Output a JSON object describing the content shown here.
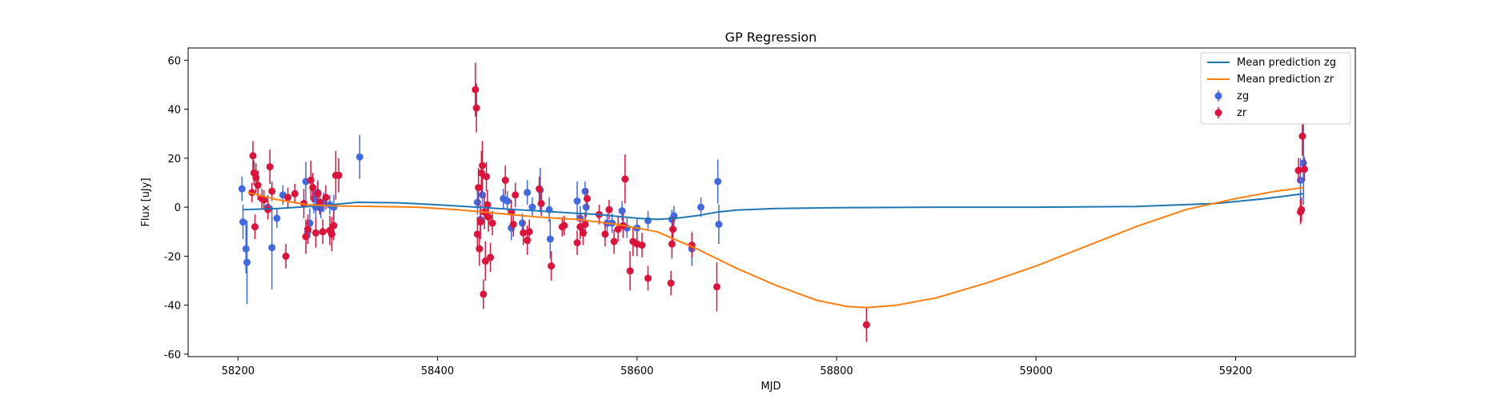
{
  "chart_data": {
    "type": "scatter",
    "title": "GP Regression",
    "xlabel": "MJD",
    "ylabel": "Flux [uJy]",
    "xlim": [
      58150,
      59320
    ],
    "ylim": [
      -61,
      65
    ],
    "xticks": [
      58200,
      58400,
      58600,
      58800,
      59000,
      59200
    ],
    "yticks": [
      -60,
      -40,
      -20,
      0,
      20,
      40,
      60
    ],
    "grid": false,
    "legend_position": "top-right",
    "legend": [
      "Mean prediction zg",
      "Mean prediction zr",
      "zg",
      "zr"
    ],
    "colors": {
      "zg_line": "#1f77b4",
      "zr_line": "#ff7f0e",
      "zg_points": "#4169e1",
      "zr_points": "#dc143c"
    },
    "lines": [
      {
        "name": "Mean prediction zg",
        "x": [
          58205,
          58240,
          58280,
          58320,
          58360,
          58400,
          58440,
          58480,
          58520,
          58560,
          58600,
          58620,
          58640,
          58660,
          58680,
          58700,
          58740,
          58800,
          58900,
          59000,
          59100,
          59180,
          59230,
          59268
        ],
        "y": [
          -1,
          -0.5,
          0.5,
          2,
          1.8,
          1,
          0,
          -1,
          -2,
          -3,
          -4.5,
          -5,
          -4.5,
          -3.5,
          -2,
          -1.2,
          -0.5,
          -0.2,
          0,
          0,
          0.3,
          1.5,
          3.5,
          5.5
        ]
      },
      {
        "name": "Mean prediction zr",
        "x": [
          58210,
          58240,
          58270,
          58300,
          58340,
          58380,
          58420,
          58460,
          58500,
          58540,
          58580,
          58620,
          58660,
          58700,
          58740,
          58780,
          58810,
          58830,
          58860,
          58900,
          58950,
          59000,
          59050,
          59100,
          59150,
          59200,
          59240,
          59268
        ],
        "y": [
          6,
          3,
          1,
          0.5,
          0.3,
          0,
          -1,
          -2.5,
          -4,
          -5,
          -7,
          -10,
          -17,
          -25,
          -32,
          -38,
          -40.5,
          -41,
          -40,
          -37,
          -31,
          -24,
          -16,
          -8,
          -1,
          3.5,
          6.5,
          8
        ]
      }
    ],
    "series": [
      {
        "name": "zg",
        "points": [
          {
            "x": 58204,
            "y": 7.5,
            "err": 5
          },
          {
            "x": 58205,
            "y": -6,
            "err": 7
          },
          {
            "x": 58208,
            "y": -17,
            "err": 10
          },
          {
            "x": 58209,
            "y": -22.5,
            "err": 17
          },
          {
            "x": 58230,
            "y": 0,
            "err": 5
          },
          {
            "x": 58234,
            "y": -16.5,
            "err": 17
          },
          {
            "x": 58239,
            "y": -4.5,
            "err": 4
          },
          {
            "x": 58245,
            "y": 5,
            "err": 4
          },
          {
            "x": 58268,
            "y": 10.5,
            "err": 8
          },
          {
            "x": 58270,
            "y": -10,
            "err": 5
          },
          {
            "x": 58272,
            "y": -6.5,
            "err": 6
          },
          {
            "x": 58276,
            "y": 3.5,
            "err": 6
          },
          {
            "x": 58278,
            "y": 0,
            "err": 5
          },
          {
            "x": 58280,
            "y": 6,
            "err": 5
          },
          {
            "x": 58283,
            "y": -0.5,
            "err": 4
          },
          {
            "x": 58286,
            "y": 2,
            "err": 4
          },
          {
            "x": 58292,
            "y": 1,
            "err": 4
          },
          {
            "x": 58296,
            "y": 0,
            "err": 5
          },
          {
            "x": 58322,
            "y": 20.5,
            "err": 9
          },
          {
            "x": 58440,
            "y": 2,
            "err": 5
          },
          {
            "x": 58443,
            "y": -5,
            "err": 5
          },
          {
            "x": 58445,
            "y": 5,
            "err": 5
          },
          {
            "x": 58466,
            "y": 3.5,
            "err": 4
          },
          {
            "x": 58470,
            "y": 2.5,
            "err": 4
          },
          {
            "x": 58474,
            "y": -8.5,
            "err": 5
          },
          {
            "x": 58485,
            "y": -6.5,
            "err": 4
          },
          {
            "x": 58490,
            "y": 6,
            "err": 5
          },
          {
            "x": 58495,
            "y": 0,
            "err": 4
          },
          {
            "x": 58503,
            "y": 7,
            "err": 9
          },
          {
            "x": 58512,
            "y": -1,
            "err": 5
          },
          {
            "x": 58513,
            "y": -13,
            "err": 8
          },
          {
            "x": 58540,
            "y": 2.5,
            "err": 8
          },
          {
            "x": 58543,
            "y": -4.5,
            "err": 5
          },
          {
            "x": 58548,
            "y": 6.5,
            "err": 4
          },
          {
            "x": 58549,
            "y": 0,
            "err": 4
          },
          {
            "x": 58570,
            "y": -6.5,
            "err": 4
          },
          {
            "x": 58575,
            "y": -6.5,
            "err": 4
          },
          {
            "x": 58585,
            "y": -1.5,
            "err": 4
          },
          {
            "x": 58590,
            "y": -8.5,
            "err": 4
          },
          {
            "x": 58600,
            "y": -8.5,
            "err": 4
          },
          {
            "x": 58611,
            "y": -5.5,
            "err": 4
          },
          {
            "x": 58635,
            "y": -5,
            "err": 4
          },
          {
            "x": 58637,
            "y": -3.5,
            "err": 4
          },
          {
            "x": 58655,
            "y": -17,
            "err": 7
          },
          {
            "x": 58664,
            "y": 0,
            "err": 4
          },
          {
            "x": 58681,
            "y": 10.5,
            "err": 9
          },
          {
            "x": 58682,
            "y": -7,
            "err": 8
          },
          {
            "x": 59265,
            "y": 11,
            "err": 9
          },
          {
            "x": 59268,
            "y": 18,
            "err": 17
          }
        ]
      },
      {
        "name": "zr",
        "points": [
          {
            "x": 58214,
            "y": 6,
            "err": 4
          },
          {
            "x": 58215,
            "y": 21,
            "err": 6
          },
          {
            "x": 58216,
            "y": 14,
            "err": 5
          },
          {
            "x": 58217,
            "y": -8,
            "err": 5
          },
          {
            "x": 58218,
            "y": 12,
            "err": 6
          },
          {
            "x": 58220,
            "y": 9,
            "err": 6
          },
          {
            "x": 58224,
            "y": 3.5,
            "err": 4
          },
          {
            "x": 58226,
            "y": 3,
            "err": 4
          },
          {
            "x": 58230,
            "y": -1,
            "err": 4
          },
          {
            "x": 58232,
            "y": 16.5,
            "err": 7
          },
          {
            "x": 58234,
            "y": 6.5,
            "err": 4
          },
          {
            "x": 58248,
            "y": -20,
            "err": 5
          },
          {
            "x": 58250,
            "y": 4,
            "err": 4
          },
          {
            "x": 58257,
            "y": 5.5,
            "err": 4
          },
          {
            "x": 58266,
            "y": 1.5,
            "err": 6
          },
          {
            "x": 58268,
            "y": -12,
            "err": 7
          },
          {
            "x": 58270,
            "y": -9,
            "err": 6
          },
          {
            "x": 58273,
            "y": 11,
            "err": 8
          },
          {
            "x": 58275,
            "y": 8,
            "err": 6
          },
          {
            "x": 58278,
            "y": -10.5,
            "err": 6
          },
          {
            "x": 58280,
            "y": 5.5,
            "err": 5
          },
          {
            "x": 58282,
            "y": 2,
            "err": 5
          },
          {
            "x": 58285,
            "y": -10,
            "err": 5
          },
          {
            "x": 58288,
            "y": 4,
            "err": 5
          },
          {
            "x": 58292,
            "y": -9.5,
            "err": 6
          },
          {
            "x": 58294,
            "y": -11,
            "err": 7
          },
          {
            "x": 58296,
            "y": -7.5,
            "err": 6
          },
          {
            "x": 58298,
            "y": 13,
            "err": 10
          },
          {
            "x": 58301,
            "y": 13,
            "err": 7
          },
          {
            "x": 58438,
            "y": 48,
            "err": 11
          },
          {
            "x": 58439,
            "y": 40.5,
            "err": 10
          },
          {
            "x": 58440,
            "y": -11,
            "err": 7
          },
          {
            "x": 58441,
            "y": 8,
            "err": 8
          },
          {
            "x": 58442,
            "y": -17,
            "err": 7
          },
          {
            "x": 58443,
            "y": -6,
            "err": 7
          },
          {
            "x": 58444,
            "y": 14,
            "err": 9
          },
          {
            "x": 58445,
            "y": 17,
            "err": 10
          },
          {
            "x": 58446,
            "y": -35.5,
            "err": 6
          },
          {
            "x": 58447,
            "y": -2,
            "err": 7
          },
          {
            "x": 58448,
            "y": -22,
            "err": 8
          },
          {
            "x": 58449,
            "y": 12.5,
            "err": 6
          },
          {
            "x": 58450,
            "y": 1,
            "err": 6
          },
          {
            "x": 58451,
            "y": -4,
            "err": 6
          },
          {
            "x": 58453,
            "y": -20.5,
            "err": 6
          },
          {
            "x": 58455,
            "y": -6.5,
            "err": 5
          },
          {
            "x": 58468,
            "y": 11,
            "err": 6
          },
          {
            "x": 58474,
            "y": -2,
            "err": 5
          },
          {
            "x": 58476,
            "y": -7,
            "err": 5
          },
          {
            "x": 58478,
            "y": 5,
            "err": 5
          },
          {
            "x": 58486,
            "y": -10.5,
            "err": 5
          },
          {
            "x": 58490,
            "y": -13.5,
            "err": 6
          },
          {
            "x": 58492,
            "y": -10,
            "err": 5
          },
          {
            "x": 58502,
            "y": 7.5,
            "err": 5
          },
          {
            "x": 58504,
            "y": 1.5,
            "err": 5
          },
          {
            "x": 58514,
            "y": -24,
            "err": 6
          },
          {
            "x": 58525,
            "y": -8,
            "err": 4
          },
          {
            "x": 58527,
            "y": -7.5,
            "err": 4
          },
          {
            "x": 58540,
            "y": -14.5,
            "err": 5
          },
          {
            "x": 58543,
            "y": -8,
            "err": 5
          },
          {
            "x": 58546,
            "y": -10.5,
            "err": 5
          },
          {
            "x": 58548,
            "y": -7,
            "err": 5
          },
          {
            "x": 58550,
            "y": 3.5,
            "err": 4
          },
          {
            "x": 58562,
            "y": -3,
            "err": 4
          },
          {
            "x": 58568,
            "y": -11,
            "err": 5
          },
          {
            "x": 58572,
            "y": -1,
            "err": 4
          },
          {
            "x": 58577,
            "y": -14,
            "err": 5
          },
          {
            "x": 58581,
            "y": -9,
            "err": 5
          },
          {
            "x": 58586,
            "y": -7.5,
            "err": 5
          },
          {
            "x": 58588,
            "y": 11.5,
            "err": 10
          },
          {
            "x": 58593,
            "y": -26,
            "err": 8
          },
          {
            "x": 58596,
            "y": -14,
            "err": 6
          },
          {
            "x": 58600,
            "y": -15,
            "err": 5
          },
          {
            "x": 58605,
            "y": -15.5,
            "err": 5
          },
          {
            "x": 58611,
            "y": -29,
            "err": 5
          },
          {
            "x": 58634,
            "y": -31,
            "err": 5
          },
          {
            "x": 58635,
            "y": -15,
            "err": 6
          },
          {
            "x": 58636,
            "y": -9,
            "err": 5
          },
          {
            "x": 58655,
            "y": -15.5,
            "err": 5
          },
          {
            "x": 58680,
            "y": -32.5,
            "err": 10
          },
          {
            "x": 58830,
            "y": -48,
            "err": 7
          },
          {
            "x": 59263,
            "y": 15,
            "err": 5
          },
          {
            "x": 59265,
            "y": -2,
            "err": 5
          },
          {
            "x": 59266,
            "y": -1,
            "err": 5
          },
          {
            "x": 59267,
            "y": 29,
            "err": 8
          },
          {
            "x": 59269,
            "y": 15.5,
            "err": 5
          }
        ]
      }
    ]
  }
}
